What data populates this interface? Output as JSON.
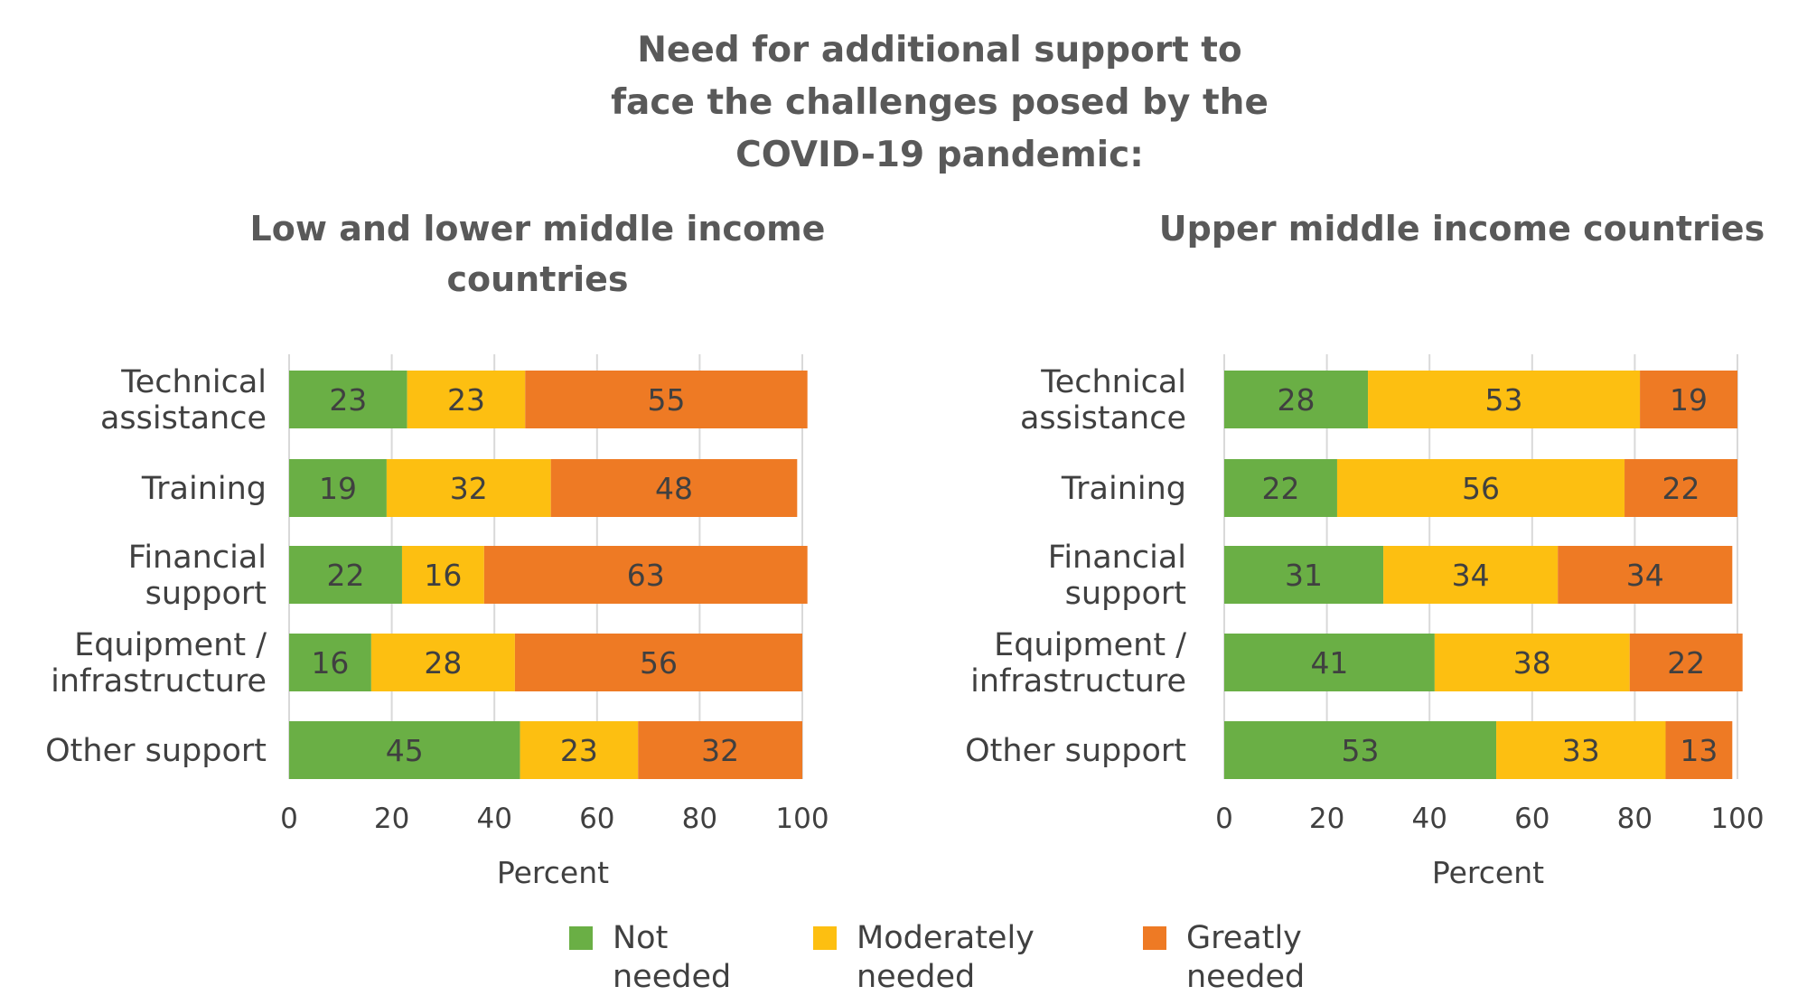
{
  "title_lines": [
    "Need for additional support to",
    "face the challenges posed by the",
    "COVID-19 pandemic:"
  ],
  "colors": {
    "not_needed": "#6AAF45",
    "moderately_needed": "#FDBF11",
    "greatly_needed": "#EE7A24",
    "grid": "#D9D9D9",
    "text": "#404040",
    "title": "#595959"
  },
  "legend": [
    {
      "key": "not_needed",
      "lines": [
        "Not",
        "needed"
      ]
    },
    {
      "key": "moderately_needed",
      "lines": [
        "Moderately",
        "needed"
      ]
    },
    {
      "key": "greatly_needed",
      "lines": [
        "Greatly",
        "needed"
      ]
    }
  ],
  "chart_data": [
    {
      "type": "bar",
      "orientation": "horizontal",
      "stacked": true,
      "title_lines": [
        "Low and lower middle income",
        "countries"
      ],
      "categories": [
        [
          "Technical",
          "assistance"
        ],
        [
          "Training"
        ],
        [
          "Financial",
          "support"
        ],
        [
          "Equipment /",
          "infrastructure"
        ],
        [
          "Other support"
        ]
      ],
      "series": [
        {
          "name": "Not needed",
          "key": "not_needed",
          "values": [
            23,
            19,
            22,
            16,
            45
          ]
        },
        {
          "name": "Moderately needed",
          "key": "moderately_needed",
          "values": [
            23,
            32,
            16,
            28,
            23
          ]
        },
        {
          "name": "Greatly needed",
          "key": "greatly_needed",
          "values": [
            55,
            48,
            63,
            56,
            32
          ]
        }
      ],
      "xlabel": "Percent",
      "xlim": [
        0,
        100
      ],
      "xticks": [
        0,
        20,
        40,
        60,
        80,
        100
      ],
      "grid": true,
      "legend": "bottom"
    },
    {
      "type": "bar",
      "orientation": "horizontal",
      "stacked": true,
      "title_lines": [
        "Upper middle income countries"
      ],
      "categories": [
        [
          "Technical",
          "assistance"
        ],
        [
          "Training"
        ],
        [
          "Financial",
          "support"
        ],
        [
          "Equipment /",
          "infrastructure"
        ],
        [
          "Other support"
        ]
      ],
      "series": [
        {
          "name": "Not needed",
          "key": "not_needed",
          "values": [
            28,
            22,
            31,
            41,
            53
          ]
        },
        {
          "name": "Moderately needed",
          "key": "moderately_needed",
          "values": [
            53,
            56,
            34,
            38,
            33
          ]
        },
        {
          "name": "Greatly needed",
          "key": "greatly_needed",
          "values": [
            19,
            22,
            34,
            22,
            13
          ]
        }
      ],
      "xlabel": "Percent",
      "xlim": [
        0,
        100
      ],
      "xticks": [
        0,
        20,
        40,
        60,
        80,
        100
      ],
      "grid": true,
      "legend": "bottom"
    }
  ]
}
